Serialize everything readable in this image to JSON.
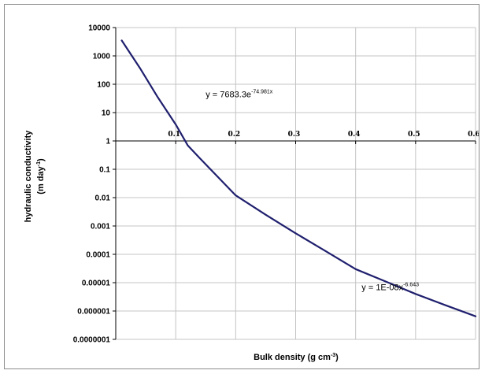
{
  "chart_data": {
    "type": "line",
    "xlabel": "Bulk density (g cm",
    "xlabel_sup": "-3",
    "xlabel_end": ")",
    "ylabel_line1": "hydraulic conductivity",
    "ylabel_line2": "(m day",
    "ylabel_sup": "-1",
    "ylabel_end": ")",
    "y_scale": "log",
    "xlim": [
      0,
      0.6
    ],
    "ylim": [
      1e-07,
      10000
    ],
    "x_crossing_y": 1,
    "grid": true,
    "x_tick_labels": [
      "0.1",
      "0.2",
      "0.3",
      "0.4",
      "0.5",
      "0.6"
    ],
    "x_ticks": [
      0.1,
      0.2,
      0.3,
      0.4,
      0.5,
      0.6
    ],
    "y_tick_labels": [
      "10000",
      "1000",
      "100",
      "10",
      "1",
      "0.1",
      "0.01",
      "0.001",
      "0.0001",
      "0.00001",
      "0.000001",
      "0.0000001"
    ],
    "y_ticks": [
      10000,
      1000,
      100,
      10,
      1,
      0.1,
      0.01,
      0.001,
      0.0001,
      1e-05,
      1e-06,
      1e-07
    ],
    "series": [
      {
        "color": "#1f1f6e",
        "x": [
          0.01,
          0.04,
          0.07,
          0.1,
          0.12,
          0.14,
          0.16,
          0.2,
          0.25,
          0.3,
          0.35,
          0.4,
          0.45,
          0.5,
          0.55,
          0.6
        ],
        "y": [
          3500,
          380,
          35,
          3.8,
          0.7,
          0.25,
          0.09,
          0.012,
          0.0025,
          0.00055,
          0.00013,
          3e-05,
          1.1e-05,
          4e-06,
          1.6e-06,
          6.5e-07
        ]
      }
    ],
    "annotations": [
      {
        "id": "exp",
        "text": "y = 7683.3e",
        "sup": "-74.981x",
        "x": 0.15,
        "y": 35
      },
      {
        "id": "pow",
        "text": "y = 1E-08x",
        "sup": "-6.643",
        "x": 0.41,
        "y": 5.5e-06
      }
    ]
  }
}
